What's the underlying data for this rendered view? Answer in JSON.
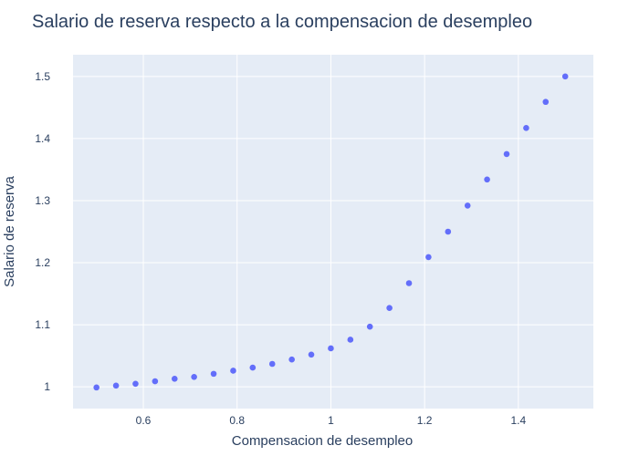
{
  "chart_data": {
    "type": "scatter",
    "title": "Salario de reserva respecto a la compensacion de desempleo",
    "xlabel": "Compensacion de desempleo",
    "ylabel": "Salario de reserva",
    "xlim": [
      0.45,
      1.56
    ],
    "ylim": [
      0.965,
      1.535
    ],
    "x_ticks": [
      0.6,
      0.8,
      1,
      1.2,
      1.4
    ],
    "x_tick_labels": [
      "0.6",
      "0.8",
      "1",
      "1.2",
      "1.4"
    ],
    "y_ticks": [
      1,
      1.1,
      1.2,
      1.3,
      1.4,
      1.5
    ],
    "y_tick_labels": [
      "1",
      "1.1",
      "1.2",
      "1.3",
      "1.4",
      "1.5"
    ],
    "grid": true,
    "legend": "none",
    "series": [
      {
        "color": "#636efa",
        "x": [
          0.5,
          0.5417,
          0.5833,
          0.625,
          0.6667,
          0.7083,
          0.75,
          0.7917,
          0.8333,
          0.875,
          0.9167,
          0.9583,
          1.0,
          1.0417,
          1.0833,
          1.125,
          1.1667,
          1.2083,
          1.25,
          1.2917,
          1.3333,
          1.375,
          1.4167,
          1.4583,
          1.5
        ],
        "y": [
          0.999,
          1.002,
          1.005,
          1.009,
          1.013,
          1.016,
          1.021,
          1.026,
          1.031,
          1.037,
          1.044,
          1.052,
          1.062,
          1.076,
          1.097,
          1.127,
          1.167,
          1.209,
          1.25,
          1.292,
          1.334,
          1.375,
          1.417,
          1.459,
          1.5
        ]
      }
    ]
  },
  "colors": {
    "plot_background": "#e5ecf6",
    "grid": "#ffffff",
    "text": "#2a3f5f",
    "marker": "#636efa"
  }
}
